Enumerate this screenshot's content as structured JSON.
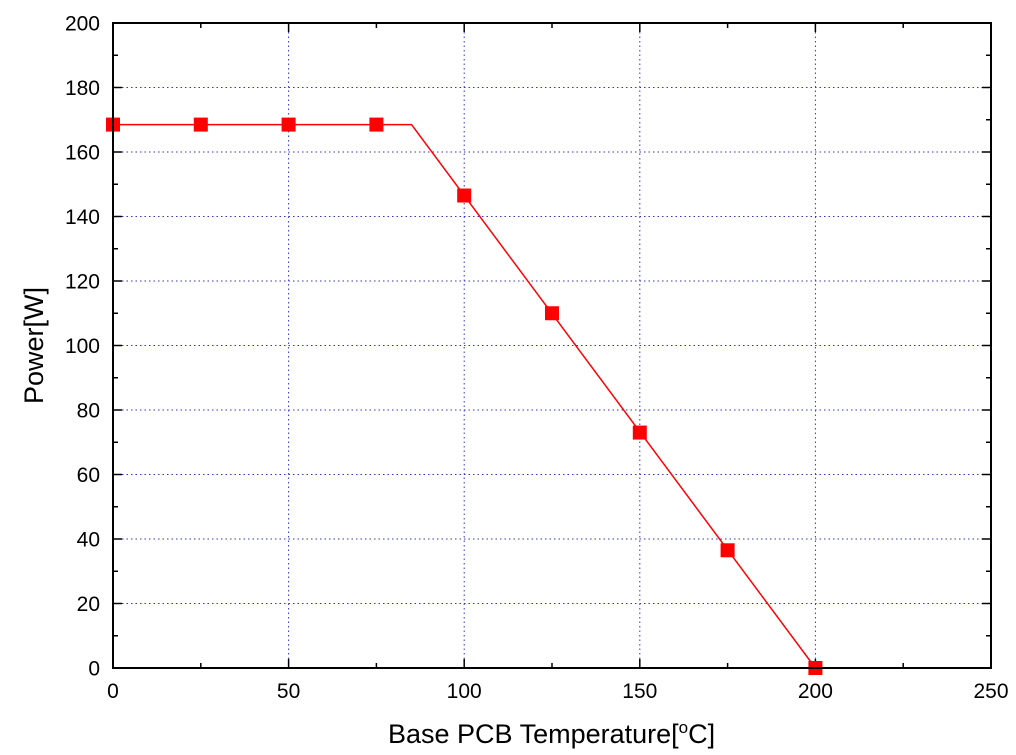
{
  "chart_data": {
    "type": "line",
    "xlabel": "Base PCB Temperature[",
    "xlabel_sup": "o",
    "xlabel_suffix": "C]",
    "ylabel": "Power[W]",
    "xlim": [
      0,
      250
    ],
    "ylim": [
      0,
      200
    ],
    "xticks": [
      0,
      50,
      100,
      150,
      200,
      250
    ],
    "yticks": [
      0,
      20,
      40,
      60,
      80,
      100,
      120,
      140,
      160,
      180,
      200
    ],
    "grid": true,
    "legend": "none",
    "series": [
      {
        "color": "#ff0000",
        "line": {
          "x": [
            0,
            85,
            200
          ],
          "y": [
            168.5,
            168.5,
            0
          ]
        },
        "markers": {
          "shape": "square",
          "x": [
            0,
            25,
            50,
            75,
            100,
            125,
            150,
            175,
            200
          ],
          "y": [
            168.5,
            168.5,
            168.5,
            168.5,
            146.5,
            110,
            73,
            36.5,
            0
          ]
        }
      }
    ],
    "colors": {
      "axis": "#000000",
      "grid": "#3333cc",
      "series": "#ff0000"
    }
  }
}
